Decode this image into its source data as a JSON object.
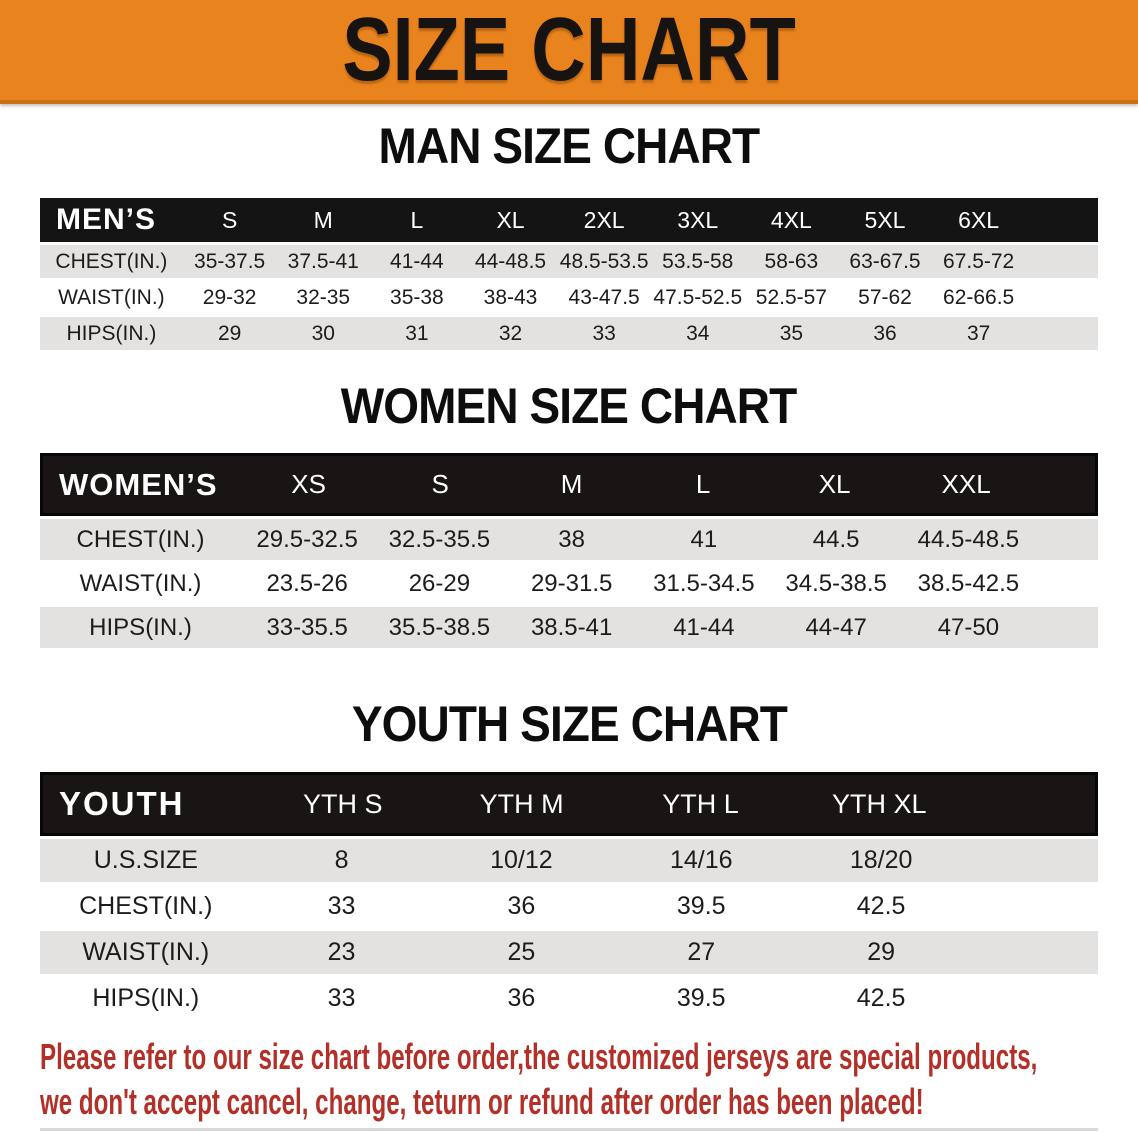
{
  "banner": {
    "title": "SIZE CHART",
    "bg_color": "#E9831D"
  },
  "colors": {
    "header_bar": "#141414",
    "row_alt": "#E3E2E0",
    "disclaimer_text": "#B23028"
  },
  "sections": [
    {
      "heading": "MAN SIZE CHART",
      "corner_label": "MEN’S",
      "columns": [
        "S",
        "M",
        "L",
        "XL",
        "2XL",
        "3XL",
        "4XL",
        "5XL",
        "6XL"
      ],
      "rows": [
        {
          "label": "CHEST(IN.)",
          "values": [
            "35-37.5",
            "37.5-41",
            "41-44",
            "44-48.5",
            "48.5-53.5",
            "53.5-58",
            "58-63",
            "63-67.5",
            "67.5-72"
          ]
        },
        {
          "label": "WAIST(IN.)",
          "values": [
            "29-32",
            "32-35",
            "35-38",
            "38-43",
            "43-47.5",
            "47.5-52.5",
            "52.5-57",
            "57-62",
            "62-66.5"
          ]
        },
        {
          "label": "HIPS(IN.)",
          "values": [
            "29",
            "30",
            "31",
            "32",
            "33",
            "34",
            "35",
            "36",
            "37"
          ]
        }
      ]
    },
    {
      "heading": "WOMEN SIZE CHART",
      "corner_label": "WOMEN’S",
      "columns": [
        "XS",
        "S",
        "M",
        "L",
        "XL",
        "XXL"
      ],
      "rows": [
        {
          "label": "CHEST(IN.)",
          "values": [
            "29.5-32.5",
            "32.5-35.5",
            "38",
            "41",
            "44.5",
            "44.5-48.5"
          ]
        },
        {
          "label": "WAIST(IN.)",
          "values": [
            "23.5-26",
            "26-29",
            "29-31.5",
            "31.5-34.5",
            "34.5-38.5",
            "38.5-42.5"
          ]
        },
        {
          "label": "HIPS(IN.)",
          "values": [
            "33-35.5",
            "35.5-38.5",
            "38.5-41",
            "41-44",
            "44-47",
            "47-50"
          ]
        }
      ]
    },
    {
      "heading": "YOUTH SIZE CHART",
      "corner_label": "YOUTH",
      "columns": [
        "YTH S",
        "YTH M",
        "YTH L",
        "YTH XL"
      ],
      "rows": [
        {
          "label": "U.S.SIZE",
          "values": [
            "8",
            "10/12",
            "14/16",
            "18/20"
          ]
        },
        {
          "label": "CHEST(IN.)",
          "values": [
            "33",
            "36",
            "39.5",
            "42.5"
          ]
        },
        {
          "label": "WAIST(IN.)",
          "values": [
            "23",
            "25",
            "27",
            "29"
          ]
        },
        {
          "label": "HIPS(IN.)",
          "values": [
            "33",
            "36",
            "39.5",
            "42.5"
          ]
        }
      ]
    }
  ],
  "disclaimer": {
    "line1": "Please refer to our size chart before order,the customized jerseys are special products,",
    "line2": "we don't accept cancel, change, teturn or refund after order has been placed!"
  }
}
